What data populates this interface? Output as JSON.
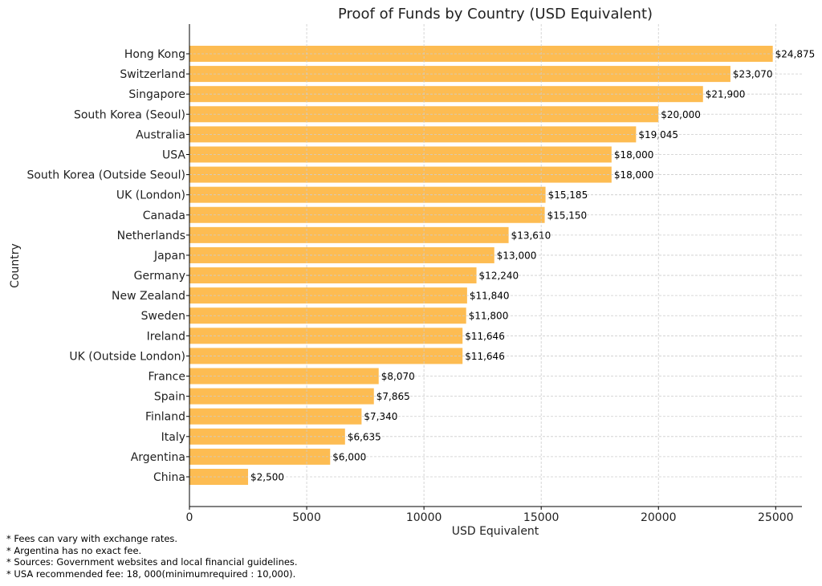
{
  "chart_data": {
    "type": "bar",
    "orientation": "horizontal",
    "title": "Proof of Funds by Country (USD Equivalent)",
    "xlabel": "USD Equivalent",
    "ylabel": "Country",
    "xlim": [
      0,
      26119
    ],
    "xticks": [
      0,
      5000,
      10000,
      15000,
      20000,
      25000
    ],
    "grid": true,
    "bar_color": "#fdbc52",
    "categories": [
      "Hong Kong",
      "Switzerland",
      "Singapore",
      "South Korea (Seoul)",
      "Australia",
      "USA",
      "South Korea (Outside Seoul)",
      "UK (London)",
      "Canada",
      "Netherlands",
      "Japan",
      "Germany",
      "New Zealand",
      "Sweden",
      "Ireland",
      "UK (Outside London)",
      "France",
      "Spain",
      "Finland",
      "Italy",
      "Argentina",
      "China"
    ],
    "values": [
      24875,
      23070,
      21900,
      20000,
      19045,
      18000,
      18000,
      15185,
      15150,
      13610,
      13000,
      12240,
      11840,
      11800,
      11646,
      11646,
      8070,
      7865,
      7340,
      6635,
      6000,
      2500
    ],
    "data_labels": [
      "$24,875",
      "$23,070",
      "$21,900",
      "$20,000",
      "$19,045",
      "$18,000",
      "$18,000",
      "$15,185",
      "$15,150",
      "$13,610",
      "$13,000",
      "$12,240",
      "$11,840",
      "$11,800",
      "$11,646",
      "$11,646",
      "$8,070",
      "$7,865",
      "$7,340",
      "$6,635",
      "$6,000",
      "$2,500"
    ]
  },
  "footnotes": [
    "* Fees can vary with exchange rates.",
    "* Argentina has no exact fee.",
    "* Sources: Government websites and local financial guidelines.",
    "* USA recommended fee: 18, 000(minimumrequired : 10,000)."
  ]
}
